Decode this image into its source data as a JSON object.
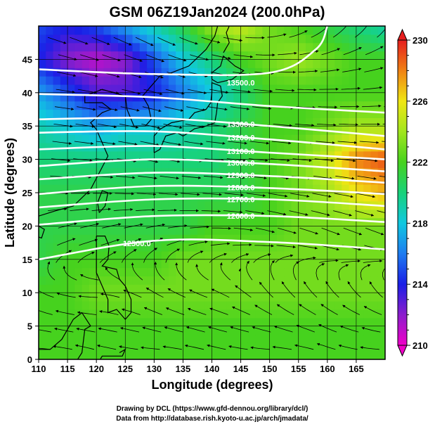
{
  "chart_data": {
    "type": "heatmap",
    "title": "GSM 06Z19Jan2024 (200.0hPa)",
    "xlabel": "Longitude (degrees)",
    "ylabel": "Latitude  (degrees)",
    "xlim": [
      110,
      170
    ],
    "ylim": [
      0,
      50
    ],
    "x_ticks": [
      110,
      115,
      120,
      125,
      130,
      135,
      140,
      145,
      150,
      155,
      160,
      165
    ],
    "y_ticks": [
      0,
      5,
      10,
      15,
      20,
      25,
      30,
      35,
      40,
      45
    ],
    "grid": true,
    "colorbar": {
      "min": 210,
      "max": 230,
      "tick_values": [
        210,
        214,
        218,
        222,
        226,
        230
      ],
      "stops": [
        {
          "value": 210,
          "color": "#f000c8"
        },
        {
          "value": 212,
          "color": "#8c1ecc"
        },
        {
          "value": 214,
          "color": "#1a1ee6"
        },
        {
          "value": 216,
          "color": "#1e7cf0"
        },
        {
          "value": 218,
          "color": "#10c8e0"
        },
        {
          "value": 220,
          "color": "#18d27a"
        },
        {
          "value": 222,
          "color": "#46d21e"
        },
        {
          "value": 224,
          "color": "#a2e61e"
        },
        {
          "value": 226,
          "color": "#f0e614"
        },
        {
          "value": 228,
          "color": "#f08214"
        },
        {
          "value": 230,
          "color": "#e61e1e"
        }
      ]
    },
    "temperature_field_K": {
      "lon": [
        110,
        115,
        120,
        125,
        130,
        135,
        140,
        145,
        150,
        155,
        160,
        165,
        170
      ],
      "lat": [
        0,
        5,
        10,
        15,
        20,
        25,
        30,
        35,
        40,
        45,
        50
      ],
      "values": [
        [
          222,
          222,
          222,
          222,
          222,
          222,
          222,
          222,
          222,
          222,
          222,
          222,
          222
        ],
        [
          222,
          222,
          222,
          222,
          222,
          222,
          222,
          222,
          222,
          222,
          222,
          222,
          222
        ],
        [
          222,
          222,
          223,
          223,
          223,
          223,
          223,
          223,
          223,
          223,
          223,
          223,
          223
        ],
        [
          221,
          222,
          222,
          222,
          222,
          223,
          223,
          223,
          223,
          223,
          223,
          223,
          223
        ],
        [
          221,
          221,
          221,
          221,
          221,
          221,
          222,
          222,
          222,
          223,
          223,
          223,
          223
        ],
        [
          221,
          221,
          221,
          221,
          221,
          221,
          221,
          221,
          222,
          223,
          224,
          226,
          227
        ],
        [
          220,
          220,
          220,
          220,
          220,
          220,
          220,
          221,
          222,
          223,
          225,
          228,
          229
        ],
        [
          219,
          218,
          217,
          218,
          218,
          219,
          220,
          221,
          222,
          222,
          223,
          224,
          224
        ],
        [
          217,
          215,
          213,
          213,
          214,
          216,
          218,
          220,
          222,
          222,
          222,
          222,
          222
        ],
        [
          214,
          212,
          211,
          212,
          215,
          218,
          220,
          222,
          223,
          224,
          223,
          222,
          222
        ],
        [
          215,
          214,
          215,
          217,
          219,
          221,
          224,
          225,
          223,
          222,
          221,
          220,
          219
        ]
      ]
    },
    "height_contours": {
      "series": [
        {
          "label": "12500.0",
          "lat_at_lon": [
            [
              110,
              15.0
            ],
            [
              130,
              17.8
            ],
            [
              150,
              17.6
            ],
            [
              170,
              16.5
            ]
          ]
        },
        {
          "label": "12600.0",
          "lat_at_lon": [
            [
              110,
              20.2
            ],
            [
              130,
              21.5
            ],
            [
              150,
              21.5
            ],
            [
              170,
              20.6
            ]
          ]
        },
        {
          "label": "12700.0",
          "lat_at_lon": [
            [
              110,
              22.8
            ],
            [
              130,
              24.0
            ],
            [
              150,
              24.0
            ],
            [
              170,
              23.0
            ]
          ]
        },
        {
          "label": "12800.0",
          "lat_at_lon": [
            [
              110,
              24.8
            ],
            [
              130,
              26.0
            ],
            [
              150,
              25.7
            ],
            [
              170,
              24.8
            ]
          ]
        },
        {
          "label": "12900.0",
          "lat_at_lon": [
            [
              110,
              27.0
            ],
            [
              130,
              28.0
            ],
            [
              150,
              27.5
            ],
            [
              170,
              26.5
            ]
          ]
        },
        {
          "label": "13000.0",
          "lat_at_lon": [
            [
              110,
              29.0
            ],
            [
              130,
              30.0
            ],
            [
              150,
              29.3
            ],
            [
              170,
              28.2
            ]
          ]
        },
        {
          "label": "13100.0",
          "lat_at_lon": [
            [
              110,
              31.5
            ],
            [
              130,
              32.0
            ],
            [
              150,
              31.0
            ],
            [
              170,
              30.0
            ]
          ]
        },
        {
          "label": "13200.0",
          "lat_at_lon": [
            [
              110,
              34.0
            ],
            [
              130,
              34.2
            ],
            [
              150,
              33.0
            ],
            [
              170,
              31.5
            ]
          ]
        },
        {
          "label": "13300.0",
          "lat_at_lon": [
            [
              110,
              36.0
            ],
            [
              130,
              36.2
            ],
            [
              150,
              35.0
            ],
            [
              170,
              33.5
            ]
          ]
        },
        {
          "label": "",
          "lat_at_lon": [
            [
              110,
              39.8
            ],
            [
              130,
              39.3
            ],
            [
              150,
              38.0
            ],
            [
              170,
              37.0
            ]
          ]
        },
        {
          "label": "",
          "lat_at_lon": [
            [
              110,
              43.5
            ],
            [
              130,
              42.8
            ],
            [
              150,
              43.0
            ],
            [
              158,
              46.5
            ],
            [
              160,
              50.0
            ]
          ]
        }
      ],
      "printed_labels": [
        "12500.0",
        "12600.0",
        "12700.0",
        "12800.0",
        "12900.0",
        "13000.0",
        "13100.0",
        "13200.0",
        "13300.0",
        "13500.0"
      ]
    },
    "wind_field": {
      "description_units": "streamlines, westerly flow",
      "lon": [
        110,
        120,
        130,
        140,
        150,
        160,
        170
      ],
      "lat": [
        0,
        10,
        20,
        30,
        40,
        50
      ],
      "u": [
        [
          -3,
          -4,
          -4,
          -5,
          -5,
          -4,
          -4
        ],
        [
          -2,
          -3,
          -4,
          -3,
          -2,
          -1,
          -1
        ],
        [
          4,
          5,
          6,
          5,
          4,
          3,
          3
        ],
        [
          10,
          11,
          12,
          12,
          11,
          10,
          9
        ],
        [
          10,
          12,
          13,
          13,
          12,
          11,
          10
        ],
        [
          6,
          7,
          8,
          7,
          5,
          3,
          2
        ]
      ],
      "v": [
        [
          0,
          1,
          0,
          1,
          0,
          1,
          0
        ],
        [
          1,
          0,
          2,
          1,
          2,
          1,
          1
        ],
        [
          1,
          1,
          1,
          0,
          -1,
          -1,
          -1
        ],
        [
          -1,
          -1,
          -2,
          -1,
          -1,
          -1,
          -1
        ],
        [
          -1,
          -2,
          -3,
          -2,
          -1,
          0,
          1
        ],
        [
          -2,
          -3,
          -4,
          -2,
          1,
          3,
          3
        ]
      ]
    }
  },
  "footer": {
    "line1": "Drawing by DCL (https://www.gfd-dennou.org/library/dcl/)",
    "line2": "Data from http://database.rish.kyoto-u.ac.jp/arch/jmadata/"
  }
}
